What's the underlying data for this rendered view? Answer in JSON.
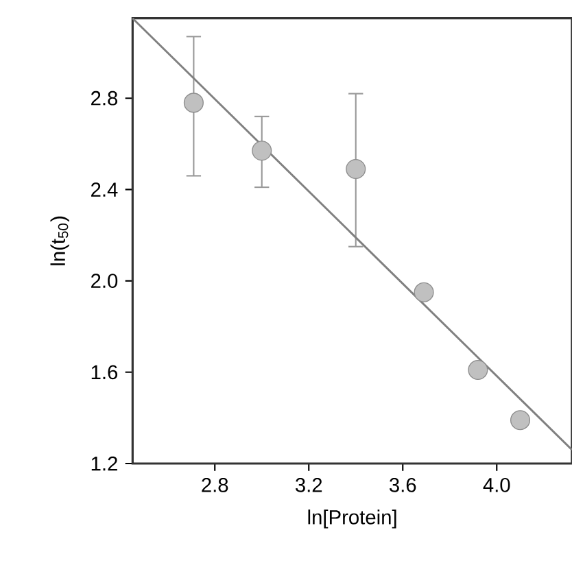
{
  "chart_data": {
    "type": "scatter",
    "xlabel": "ln[Protein]",
    "ylabel": "ln(t$_{50}$)",
    "xlim": [
      2.45,
      4.32
    ],
    "ylim": [
      1.2,
      3.15
    ],
    "xticks": [
      {
        "value": 2.8,
        "label": "2.8"
      },
      {
        "value": 3.2,
        "label": "3.2"
      },
      {
        "value": 3.6,
        "label": "3.6"
      },
      {
        "value": 4.0,
        "label": "4.0"
      }
    ],
    "yticks": [
      {
        "value": 1.2,
        "label": "1.2"
      },
      {
        "value": 1.6,
        "label": "1.6"
      },
      {
        "value": 2.0,
        "label": "2.0"
      },
      {
        "value": 2.4,
        "label": "2.4"
      },
      {
        "value": 2.8,
        "label": "2.8"
      }
    ],
    "grid": false,
    "marker": "circle",
    "series": [
      {
        "color": "#c0c0c0",
        "x": [
          2.71,
          3.0,
          3.4,
          3.69,
          3.92,
          4.1
        ],
        "values": [
          2.78,
          2.57,
          2.49,
          1.95,
          1.61,
          1.39
        ],
        "errors": [
          [
            2.46,
            3.07
          ],
          [
            2.41,
            2.72
          ],
          [
            2.15,
            2.82
          ],
          null,
          null,
          null
        ]
      },
      {
        "type": "line",
        "marker": "none",
        "color": "#808080",
        "x": [
          2.45,
          4.32
        ],
        "values": [
          3.15,
          1.26
        ]
      }
    ]
  }
}
